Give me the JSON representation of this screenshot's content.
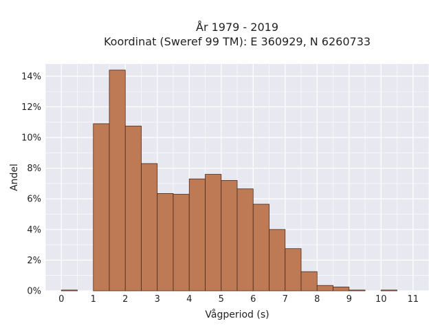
{
  "chart_data": {
    "type": "bar",
    "title_line1": "År 1979 - 2019",
    "title_line2": "Koordinat (Sweref 99 TM): E 360929, N 6260733",
    "xlabel": "Vågperiod (s)",
    "ylabel": "Andel",
    "xlim": [
      -0.5,
      11.5
    ],
    "ylim": [
      0,
      14.8
    ],
    "x_ticks": [
      0,
      1,
      2,
      3,
      4,
      5,
      6,
      7,
      8,
      9,
      10,
      11
    ],
    "x_tick_labels": [
      "0",
      "1",
      "2",
      "3",
      "4",
      "5",
      "6",
      "7",
      "8",
      "9",
      "10",
      "11"
    ],
    "y_ticks": [
      0,
      2,
      4,
      6,
      8,
      10,
      12,
      14
    ],
    "y_tick_labels": [
      "0%",
      "2%",
      "4%",
      "6%",
      "8%",
      "10%",
      "12%",
      "14%"
    ],
    "bin_width": 0.5,
    "bin_starts": [
      0,
      0.5,
      1,
      1.5,
      2,
      2.5,
      3,
      3.5,
      4,
      4.5,
      5,
      5.5,
      6,
      6.5,
      7,
      7.5,
      8,
      8.5,
      9,
      9.5,
      10,
      10.5
    ],
    "values": [
      0.05,
      0,
      10.9,
      14.4,
      10.75,
      8.3,
      6.35,
      6.3,
      7.3,
      7.6,
      7.2,
      6.65,
      5.65,
      4.0,
      2.75,
      1.25,
      0.35,
      0.25,
      0.05,
      0,
      0.05,
      0
    ],
    "grid": true,
    "colors": {
      "bar_fill": "#bd7a55",
      "bar_edge": "#4a2a1a",
      "plot_bg": "#e8e8f1",
      "grid": "#ffffff"
    }
  }
}
